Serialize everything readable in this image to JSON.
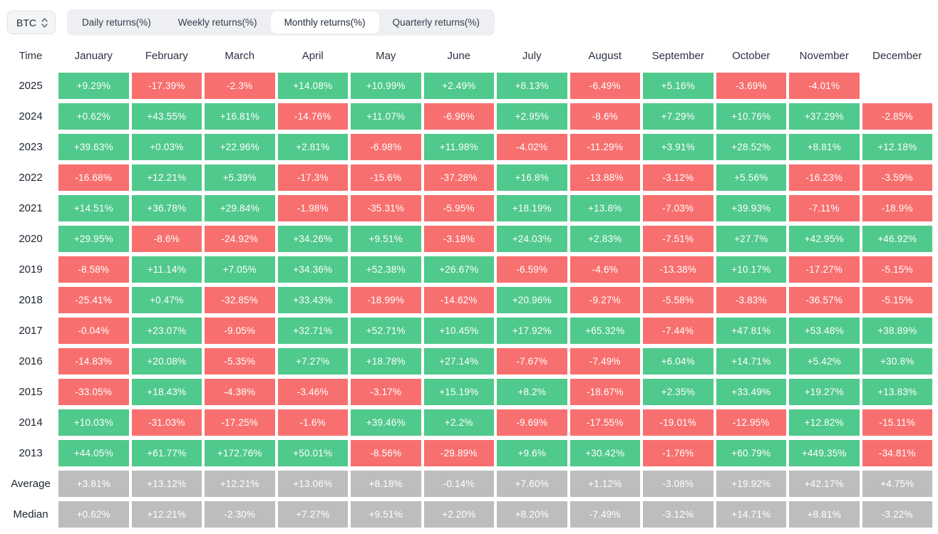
{
  "toolbar": {
    "symbol": "BTC",
    "tabs": [
      {
        "label": "Daily returns(%)",
        "active": false
      },
      {
        "label": "Weekly returns(%)",
        "active": false
      },
      {
        "label": "Monthly returns(%)",
        "active": true
      },
      {
        "label": "Quarterly returns(%)",
        "active": false
      }
    ]
  },
  "colors": {
    "positive": "#50c98c",
    "negative": "#f7706f",
    "summary": "#bdbdbd"
  },
  "chart_data": {
    "type": "heatmap",
    "title": "Monthly returns(%)",
    "row_header": "Time",
    "columns": [
      "January",
      "February",
      "March",
      "April",
      "May",
      "June",
      "July",
      "August",
      "September",
      "October",
      "November",
      "December"
    ],
    "rows": [
      {
        "label": "2025",
        "kind": "year",
        "values": [
          "+9.29%",
          "-17.39%",
          "-2.3%",
          "+14.08%",
          "+10.99%",
          "+2.49%",
          "+8.13%",
          "-6.49%",
          "+5.16%",
          "-3.69%",
          "-4.01%",
          ""
        ]
      },
      {
        "label": "2024",
        "kind": "year",
        "values": [
          "+0.62%",
          "+43.55%",
          "+16.81%",
          "-14.76%",
          "+11.07%",
          "-6.96%",
          "+2.95%",
          "-8.6%",
          "+7.29%",
          "+10.76%",
          "+37.29%",
          "-2.85%"
        ]
      },
      {
        "label": "2023",
        "kind": "year",
        "values": [
          "+39.63%",
          "+0.03%",
          "+22.96%",
          "+2.81%",
          "-6.98%",
          "+11.98%",
          "-4.02%",
          "-11.29%",
          "+3.91%",
          "+28.52%",
          "+8.81%",
          "+12.18%"
        ]
      },
      {
        "label": "2022",
        "kind": "year",
        "values": [
          "-16.68%",
          "+12.21%",
          "+5.39%",
          "-17.3%",
          "-15.6%",
          "-37.28%",
          "+16.8%",
          "-13.88%",
          "-3.12%",
          "+5.56%",
          "-16.23%",
          "-3.59%"
        ]
      },
      {
        "label": "2021",
        "kind": "year",
        "values": [
          "+14.51%",
          "+36.78%",
          "+29.84%",
          "-1.98%",
          "-35.31%",
          "-5.95%",
          "+18.19%",
          "+13.8%",
          "-7.03%",
          "+39.93%",
          "-7.11%",
          "-18.9%"
        ]
      },
      {
        "label": "2020",
        "kind": "year",
        "values": [
          "+29.95%",
          "-8.6%",
          "-24.92%",
          "+34.26%",
          "+9.51%",
          "-3.18%",
          "+24.03%",
          "+2.83%",
          "-7.51%",
          "+27.7%",
          "+42.95%",
          "+46.92%"
        ]
      },
      {
        "label": "2019",
        "kind": "year",
        "values": [
          "-8.58%",
          "+11.14%",
          "+7.05%",
          "+34.36%",
          "+52.38%",
          "+26.67%",
          "-6.59%",
          "-4.6%",
          "-13.38%",
          "+10.17%",
          "-17.27%",
          "-5.15%"
        ]
      },
      {
        "label": "2018",
        "kind": "year",
        "values": [
          "-25.41%",
          "+0.47%",
          "-32.85%",
          "+33.43%",
          "-18.99%",
          "-14.62%",
          "+20.96%",
          "-9.27%",
          "-5.58%",
          "-3.83%",
          "-36.57%",
          "-5.15%"
        ]
      },
      {
        "label": "2017",
        "kind": "year",
        "values": [
          "-0.04%",
          "+23.07%",
          "-9.05%",
          "+32.71%",
          "+52.71%",
          "+10.45%",
          "+17.92%",
          "+65.32%",
          "-7.44%",
          "+47.81%",
          "+53.48%",
          "+38.89%"
        ]
      },
      {
        "label": "2016",
        "kind": "year",
        "values": [
          "-14.83%",
          "+20.08%",
          "-5.35%",
          "+7.27%",
          "+18.78%",
          "+27.14%",
          "-7.67%",
          "-7.49%",
          "+6.04%",
          "+14.71%",
          "+5.42%",
          "+30.8%"
        ]
      },
      {
        "label": "2015",
        "kind": "year",
        "values": [
          "-33.05%",
          "+18.43%",
          "-4.38%",
          "-3.46%",
          "-3.17%",
          "+15.19%",
          "+8.2%",
          "-18.67%",
          "+2.35%",
          "+33.49%",
          "+19.27%",
          "+13.83%"
        ]
      },
      {
        "label": "2014",
        "kind": "year",
        "values": [
          "+10.03%",
          "-31.03%",
          "-17.25%",
          "-1.6%",
          "+39.46%",
          "+2.2%",
          "-9.69%",
          "-17.55%",
          "-19.01%",
          "-12.95%",
          "+12.82%",
          "-15.11%"
        ]
      },
      {
        "label": "2013",
        "kind": "year",
        "values": [
          "+44.05%",
          "+61.77%",
          "+172.76%",
          "+50.01%",
          "-8.56%",
          "-29.89%",
          "+9.6%",
          "+30.42%",
          "-1.76%",
          "+60.79%",
          "+449.35%",
          "-34.81%"
        ]
      },
      {
        "label": "Average",
        "kind": "summary",
        "values": [
          "+3.81%",
          "+13.12%",
          "+12.21%",
          "+13.06%",
          "+8.18%",
          "-0.14%",
          "+7.60%",
          "+1.12%",
          "-3.08%",
          "+19.92%",
          "+42.17%",
          "+4.75%"
        ]
      },
      {
        "label": "Median",
        "kind": "summary",
        "values": [
          "+0.62%",
          "+12.21%",
          "-2.30%",
          "+7.27%",
          "+9.51%",
          "+2.20%",
          "+8.20%",
          "-7.49%",
          "-3.12%",
          "+14.71%",
          "+8.81%",
          "-3.22%"
        ]
      }
    ]
  }
}
